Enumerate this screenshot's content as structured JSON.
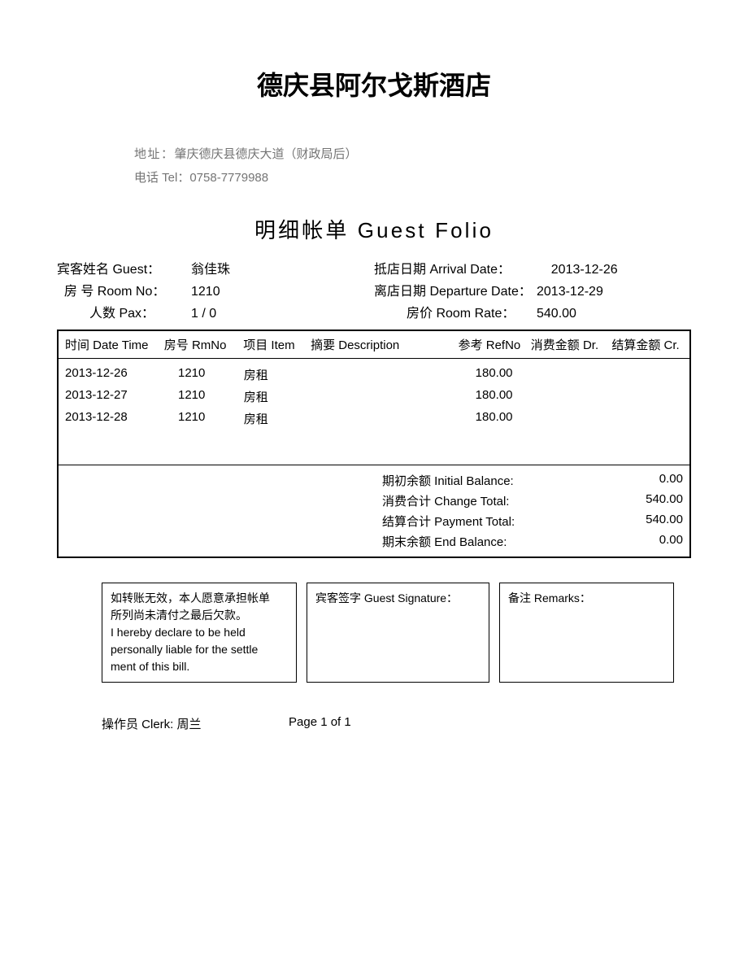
{
  "hotel": {
    "name": "德庆县阿尔戈斯酒店",
    "address_label": "地址：",
    "address": "肇庆德庆县德庆大道（财政局后）",
    "tel_label": "电话 Tel：",
    "tel": "0758-7779988"
  },
  "folio_title": "明细帐单 Guest Folio",
  "guest": {
    "name_label": "宾客姓名 Guest：",
    "name": "翁佳珠",
    "room_label": "房  号 Room No：",
    "room": "1210",
    "pax_label": "人数 Pax：",
    "pax": "1 / 0",
    "arrival_label": "抵店日期 Arrival Date：",
    "arrival": "2013-12-26",
    "departure_label": "离店日期 Departure Date：",
    "departure": "2013-12-29",
    "rate_label": "房价 Room Rate：",
    "rate": "540.00"
  },
  "table": {
    "headers": {
      "datetime": "时间 Date Time",
      "rmno": "房号 RmNo",
      "item": "项目 Item",
      "desc": "摘要 Description",
      "refno": "参考 RefNo",
      "dr": "消费金额 Dr.",
      "cr": "结算金额 Cr."
    },
    "rows": [
      {
        "datetime": "2013-12-26",
        "rmno": "1210",
        "item": "房租",
        "desc": "",
        "refno": "180.00",
        "dr": "",
        "cr": ""
      },
      {
        "datetime": "2013-12-27",
        "rmno": "1210",
        "item": "房租",
        "desc": "",
        "refno": "180.00",
        "dr": "",
        "cr": ""
      },
      {
        "datetime": "2013-12-28",
        "rmno": "1210",
        "item": "房租",
        "desc": "",
        "refno": "180.00",
        "dr": "",
        "cr": ""
      }
    ],
    "totals": {
      "initial_label": "期初余额 Initial Balance:",
      "initial": "0.00",
      "change_label": "消费合计 Change Total:",
      "change": "540.00",
      "payment_label": "结算合计 Payment Total:",
      "payment": "540.00",
      "end_label": "期末余额 End Balance:",
      "end": "0.00"
    }
  },
  "footer": {
    "declare_cn1": "如转账无效，本人愿意承担帐单",
    "declare_cn2": "所列尚未清付之最后欠款。",
    "declare_en1": "I hereby declare to be held",
    "declare_en2": "personally liable for the settle",
    "declare_en3": "ment of this bill.",
    "signature_label": "宾客签字 Guest Signature：",
    "remarks_label": "备注 Remarks："
  },
  "clerk": {
    "label": "操作员 Clerk:",
    "name": "周兰",
    "page": "Page 1 of  1"
  }
}
